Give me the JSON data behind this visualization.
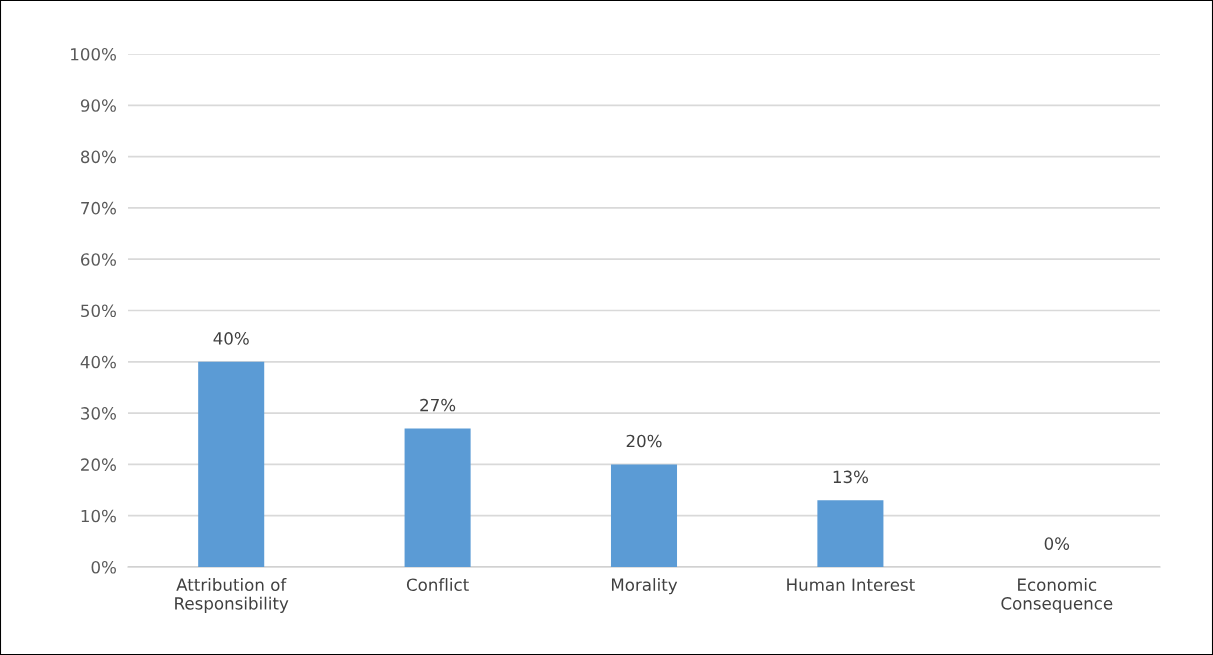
{
  "chart_data": {
    "type": "bar",
    "categories": [
      "Attribution of\nResponsibility",
      "Conflict",
      "Morality",
      "Human Interest",
      "Economic\nConsequence"
    ],
    "values": [
      40,
      27,
      20,
      13,
      0
    ],
    "value_labels": [
      "40%",
      "27%",
      "20%",
      "13%",
      "0%"
    ],
    "color": "#5b9bd5",
    "ylim": [
      0,
      100
    ],
    "yticks": [
      {
        "value": 0,
        "label": "0%"
      },
      {
        "value": 10,
        "label": "10%"
      },
      {
        "value": 20,
        "label": "20%"
      },
      {
        "value": 30,
        "label": "30%"
      },
      {
        "value": 40,
        "label": "40%"
      },
      {
        "value": 50,
        "label": "50%"
      },
      {
        "value": 60,
        "label": "60%"
      },
      {
        "value": 70,
        "label": "70%"
      },
      {
        "value": 80,
        "label": "80%"
      },
      {
        "value": 90,
        "label": "90%"
      },
      {
        "value": 100,
        "label": "100%"
      }
    ],
    "grid": "y",
    "legend": false
  }
}
